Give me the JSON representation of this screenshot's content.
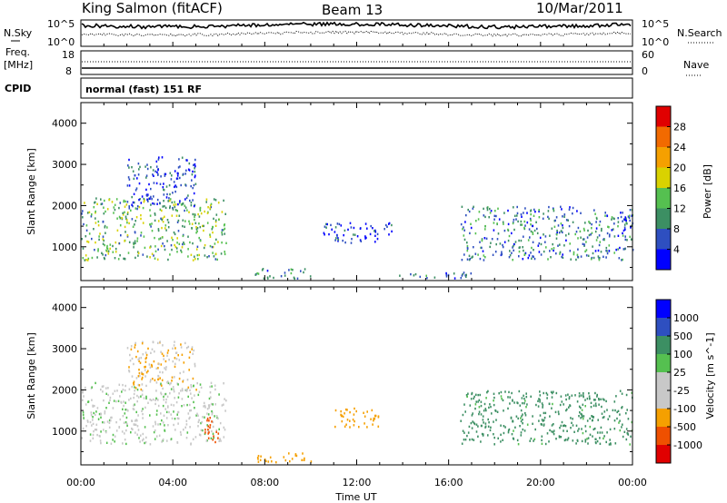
{
  "header": {
    "station": "King Salmon (fitACF)",
    "beam": "Beam 13",
    "date": "10/Mar/2011"
  },
  "left_labels": {
    "nsky": "N.Sky",
    "freq_line1": "Freq.",
    "freq_line2": "[MHz]",
    "cpid": "CPID"
  },
  "right_labels": {
    "nsearch": "N.Search",
    "nave": "Nave"
  },
  "cpid_text": "normal (fast) 151 RF",
  "noise_panel": {
    "ticks_left": [
      "10^5",
      "10^0"
    ],
    "ticks_right": [
      "10^5",
      "10^0"
    ]
  },
  "freq_panel": {
    "ticks_left": [
      "18",
      "8"
    ],
    "ticks_right": [
      "60",
      "0"
    ]
  },
  "colors": {
    "power": [
      "#0000ff",
      "#2e4fc0",
      "#3c8f63",
      "#55c050",
      "#d9d200",
      "#f5a000",
      "#f26a00",
      "#e00000"
    ],
    "velocity": [
      "#e00000",
      "#ef5000",
      "#f5a000",
      "#c8c8c8",
      "#c8c8c8",
      "#55c050",
      "#3c8f63",
      "#2e4fc0",
      "#0000ff"
    ]
  },
  "chart_data": [
    {
      "type": "heatmap",
      "title": "",
      "xlabel": "",
      "ylabel": "Slant Range [km]",
      "x_ticks": [
        "00:00",
        "04:00",
        "08:00",
        "12:00",
        "16:00",
        "20:00",
        "00:00"
      ],
      "xlim_hours": [
        0,
        24
      ],
      "y_ticks": [
        1000,
        2000,
        3000,
        4000
      ],
      "ylim_km": [
        180,
        4500
      ],
      "colorbar": {
        "label": "Power [dB]",
        "ticks": [
          4,
          8,
          12,
          16,
          20,
          24,
          28
        ]
      },
      "regions": [
        {
          "t0": 0.0,
          "t1": 6.3,
          "r0": 700,
          "r1": 2200,
          "level": 3
        },
        {
          "t0": 2.0,
          "t1": 5.0,
          "r0": 2000,
          "r1": 3200,
          "level": 1
        },
        {
          "t0": 7.5,
          "t1": 10.0,
          "r0": 250,
          "r1": 500,
          "level": 2
        },
        {
          "t0": 10.5,
          "t1": 13.5,
          "r0": 1100,
          "r1": 1600,
          "level": 1
        },
        {
          "t0": 13.5,
          "t1": 17.0,
          "r0": 250,
          "r1": 400,
          "level": 2
        },
        {
          "t0": 16.5,
          "t1": 24.0,
          "r0": 700,
          "r1": 2000,
          "level": 2
        }
      ]
    },
    {
      "type": "heatmap",
      "title": "",
      "xlabel": "Time UT",
      "ylabel": "Slant Range [km]",
      "x_ticks": [
        "00:00",
        "04:00",
        "08:00",
        "12:00",
        "16:00",
        "20:00",
        "00:00"
      ],
      "xlim_hours": [
        0,
        24
      ],
      "y_ticks": [
        1000,
        2000,
        3000,
        4000
      ],
      "ylim_km": [
        180,
        4500
      ],
      "colorbar": {
        "label": "Velocity [m s^-1]",
        "ticks": [
          -1000,
          -500,
          -100,
          -25,
          25,
          100,
          500,
          1000
        ]
      },
      "regions": [
        {
          "t0": 0.0,
          "t1": 6.3,
          "r0": 700,
          "r1": 2200,
          "velocity": 0
        },
        {
          "t0": 5.3,
          "t1": 6.0,
          "r0": 700,
          "r1": 1400,
          "velocity": -600
        },
        {
          "t0": 2.0,
          "t1": 5.0,
          "r0": 2000,
          "r1": 3200,
          "velocity": -100
        },
        {
          "t0": 7.5,
          "t1": 10.0,
          "r0": 250,
          "r1": 500,
          "velocity": -200
        },
        {
          "t0": 11.0,
          "t1": 13.0,
          "r0": 1100,
          "r1": 1600,
          "velocity": -300
        },
        {
          "t0": 16.5,
          "t1": 24.0,
          "r0": 700,
          "r1": 2000,
          "velocity": 150
        }
      ]
    }
  ]
}
